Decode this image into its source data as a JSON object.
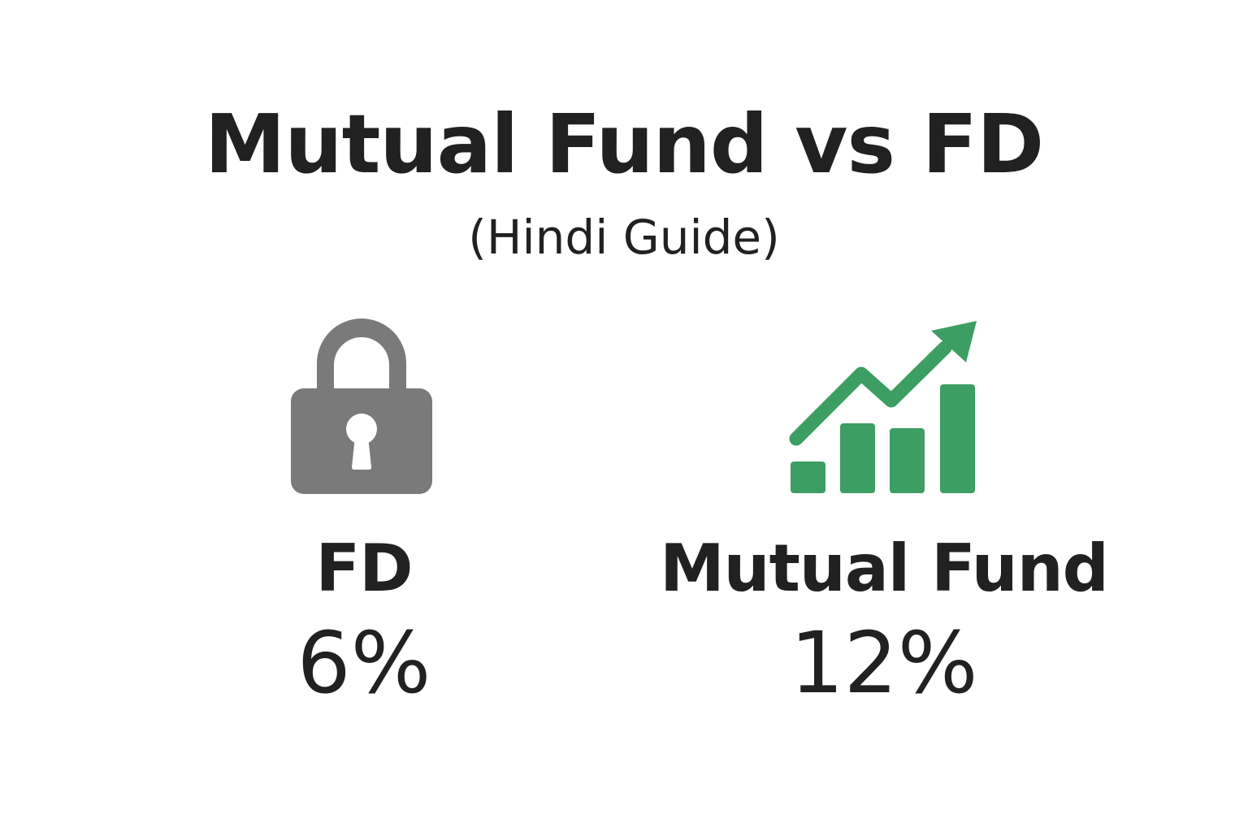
{
  "header": {
    "title": "Mutual Fund vs FD",
    "subtitle": "(Hindi Guide)"
  },
  "fd": {
    "icon": "lock-icon",
    "label": "FD",
    "value": "6%",
    "color": "#7a7a7a"
  },
  "mutual_fund": {
    "icon": "growth-chart-icon",
    "label": "Mutual Fund",
    "value": "12%",
    "color": "#3c9e63"
  }
}
